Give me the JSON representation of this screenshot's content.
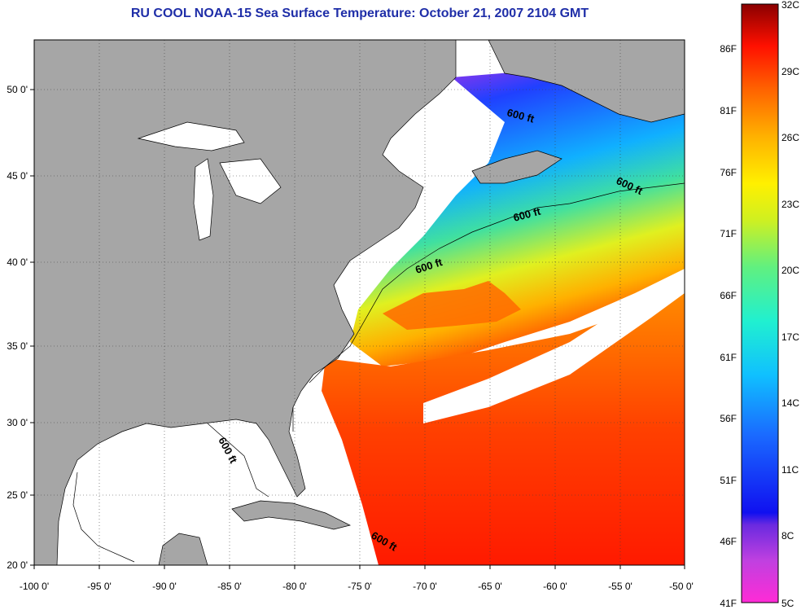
{
  "title": "RU COOL  NOAA-15  Sea Surface Temperature:  October 21, 2007 2104 GMT",
  "map": {
    "lon_ticks": [
      "-100 0'",
      "-95 0'",
      "-90 0'",
      "-85 0'",
      "-80 0'",
      "-75 0'",
      "-70 0'",
      "-65 0'",
      "-60 0'",
      "-55 0'",
      "-50 0'"
    ],
    "lat_ticks": [
      "50 0'",
      "45 0'",
      "40 0'",
      "35 0'",
      "30 0'",
      "25 0'",
      "20 0'"
    ],
    "contour_labels": [
      "600 ft",
      "600 ft",
      "600 ft",
      "600 ft",
      "600 ft",
      "600 ft"
    ],
    "colors": {
      "land": "#a6a6a6",
      "no_data": "#ffffff",
      "coast": "#000000"
    }
  },
  "colorbar": {
    "f_labels": [
      "86F",
      "81F",
      "76F",
      "71F",
      "66F",
      "61F",
      "56F",
      "51F",
      "46F",
      "41F"
    ],
    "c_labels": [
      "32C",
      "29C",
      "26C",
      "23C",
      "20C",
      "17C",
      "14C",
      "11C",
      "8C",
      "5C"
    ]
  }
}
